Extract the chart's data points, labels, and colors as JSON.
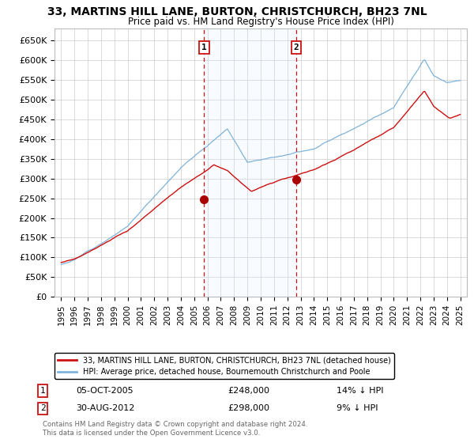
{
  "title": "33, MARTINS HILL LANE, BURTON, CHRISTCHURCH, BH23 7NL",
  "subtitle": "Price paid vs. HM Land Registry's House Price Index (HPI)",
  "ylabel_ticks": [
    "£0",
    "£50K",
    "£100K",
    "£150K",
    "£200K",
    "£250K",
    "£300K",
    "£350K",
    "£400K",
    "£450K",
    "£500K",
    "£550K",
    "£600K",
    "£650K"
  ],
  "ylim": [
    0,
    680000
  ],
  "ytick_vals": [
    0,
    50000,
    100000,
    150000,
    200000,
    250000,
    300000,
    350000,
    400000,
    450000,
    500000,
    550000,
    600000,
    650000
  ],
  "hpi_color": "#7fb3d9",
  "price_color": "#cc1111",
  "dashed_color": "#cc1111",
  "marker_color": "#aa0000",
  "shade_color": "#ddeeff",
  "annotation_box_color": "#cc1111",
  "background_color": "#ffffff",
  "grid_color": "#cccccc",
  "legend_label_price": "33, MARTINS HILL LANE, BURTON, CHRISTCHURCH, BH23 7NL (detached house)",
  "legend_label_hpi": "HPI: Average price, detached house, Bournemouth Christchurch and Poole",
  "footer": "Contains HM Land Registry data © Crown copyright and database right 2024.\nThis data is licensed under the Open Government Licence v3.0.",
  "sale1_date": "05-OCT-2005",
  "sale1_price": 248000,
  "sale1_label": "14% ↓ HPI",
  "sale2_date": "30-AUG-2012",
  "sale2_price": 298000,
  "sale2_label": "9% ↓ HPI",
  "sale1_x": 2005.75,
  "sale2_x": 2012.67,
  "shade_x1": 2005.75,
  "shade_x2": 2012.67,
  "xlim": [
    1994.5,
    2025.5
  ],
  "xtick_years": [
    1995,
    1996,
    1997,
    1998,
    1999,
    2000,
    2001,
    2002,
    2003,
    2004,
    2005,
    2006,
    2007,
    2008,
    2009,
    2010,
    2011,
    2012,
    2013,
    2014,
    2015,
    2016,
    2017,
    2018,
    2019,
    2020,
    2021,
    2022,
    2023,
    2024,
    2025
  ]
}
